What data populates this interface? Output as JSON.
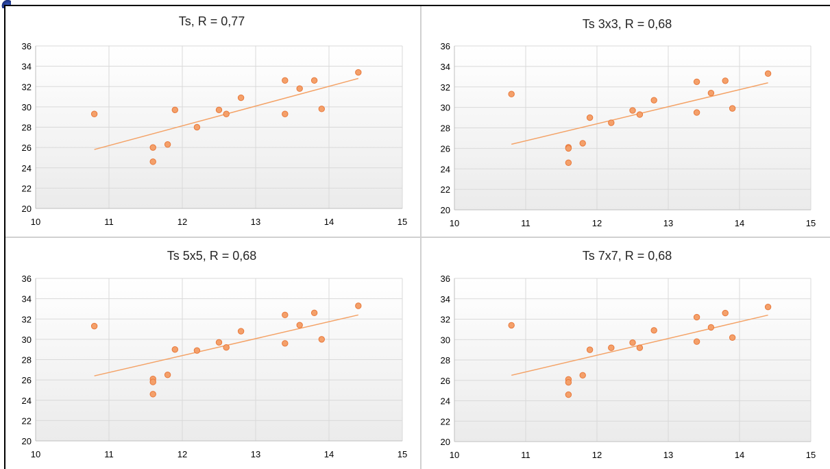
{
  "chart_data": [
    {
      "type": "scatter",
      "title": "Ts, R = 0,77",
      "xlim": [
        10,
        15
      ],
      "ylim": [
        20,
        36
      ],
      "xticks": [
        10,
        11,
        12,
        13,
        14,
        15
      ],
      "yticks": [
        20,
        22,
        24,
        26,
        28,
        30,
        32,
        34,
        36
      ],
      "grid": true,
      "points": [
        [
          10.8,
          29.3
        ],
        [
          11.6,
          26.0
        ],
        [
          11.6,
          24.6
        ],
        [
          11.8,
          26.3
        ],
        [
          11.9,
          29.7
        ],
        [
          12.2,
          28.0
        ],
        [
          12.5,
          29.7
        ],
        [
          12.6,
          29.3
        ],
        [
          12.8,
          30.9
        ],
        [
          13.4,
          32.6
        ],
        [
          13.4,
          29.3
        ],
        [
          13.6,
          31.8
        ],
        [
          13.8,
          32.6
        ],
        [
          13.9,
          29.8
        ],
        [
          14.4,
          33.4
        ]
      ],
      "trendline": [
        [
          10.8,
          25.8
        ],
        [
          14.4,
          32.8
        ]
      ],
      "color": "#f4a06a"
    },
    {
      "type": "scatter",
      "title": "Ts 3x3, R = 0,68",
      "xlim": [
        10,
        15
      ],
      "ylim": [
        20,
        36
      ],
      "xticks": [
        10,
        11,
        12,
        13,
        14,
        15
      ],
      "yticks": [
        20,
        22,
        24,
        26,
        28,
        30,
        32,
        34,
        36
      ],
      "grid": true,
      "points": [
        [
          10.8,
          31.3
        ],
        [
          11.6,
          26.1
        ],
        [
          11.6,
          26.0
        ],
        [
          11.6,
          24.6
        ],
        [
          11.8,
          26.5
        ],
        [
          11.9,
          29.0
        ],
        [
          12.2,
          28.5
        ],
        [
          12.5,
          29.7
        ],
        [
          12.6,
          29.3
        ],
        [
          12.8,
          30.7
        ],
        [
          13.4,
          32.5
        ],
        [
          13.4,
          29.5
        ],
        [
          13.6,
          31.4
        ],
        [
          13.8,
          32.6
        ],
        [
          13.9,
          29.9
        ],
        [
          14.4,
          33.3
        ]
      ],
      "trendline": [
        [
          10.8,
          26.4
        ],
        [
          14.4,
          32.4
        ]
      ],
      "color": "#f4a06a"
    },
    {
      "type": "scatter",
      "title": "Ts 5x5, R = 0,68",
      "xlim": [
        10,
        15
      ],
      "ylim": [
        20,
        36
      ],
      "xticks": [
        10,
        11,
        12,
        13,
        14,
        15
      ],
      "yticks": [
        20,
        22,
        24,
        26,
        28,
        30,
        32,
        34,
        36
      ],
      "grid": true,
      "points": [
        [
          10.8,
          31.3
        ],
        [
          11.6,
          26.1
        ],
        [
          11.6,
          25.8
        ],
        [
          11.6,
          24.6
        ],
        [
          11.8,
          26.5
        ],
        [
          11.9,
          29.0
        ],
        [
          12.2,
          28.9
        ],
        [
          12.5,
          29.7
        ],
        [
          12.6,
          29.2
        ],
        [
          12.8,
          30.8
        ],
        [
          13.4,
          32.4
        ],
        [
          13.4,
          29.6
        ],
        [
          13.6,
          31.4
        ],
        [
          13.8,
          32.6
        ],
        [
          13.9,
          30.0
        ],
        [
          14.4,
          33.3
        ]
      ],
      "trendline": [
        [
          10.8,
          26.4
        ],
        [
          14.4,
          32.4
        ]
      ],
      "color": "#f4a06a"
    },
    {
      "type": "scatter",
      "title": "Ts 7x7, R = 0,68",
      "xlim": [
        10,
        15
      ],
      "ylim": [
        20,
        36
      ],
      "xticks": [
        10,
        11,
        12,
        13,
        14,
        15
      ],
      "yticks": [
        20,
        22,
        24,
        26,
        28,
        30,
        32,
        34,
        36
      ],
      "grid": true,
      "points": [
        [
          10.8,
          31.4
        ],
        [
          11.6,
          26.1
        ],
        [
          11.6,
          25.8
        ],
        [
          11.6,
          24.6
        ],
        [
          11.8,
          26.5
        ],
        [
          11.9,
          29.0
        ],
        [
          12.2,
          29.2
        ],
        [
          12.5,
          29.7
        ],
        [
          12.6,
          29.2
        ],
        [
          12.8,
          30.9
        ],
        [
          13.4,
          32.2
        ],
        [
          13.4,
          29.8
        ],
        [
          13.6,
          31.2
        ],
        [
          13.8,
          32.6
        ],
        [
          13.9,
          30.2
        ],
        [
          14.4,
          33.2
        ]
      ],
      "trendline": [
        [
          10.8,
          26.5
        ],
        [
          14.4,
          32.4
        ]
      ],
      "color": "#f4a06a"
    }
  ]
}
